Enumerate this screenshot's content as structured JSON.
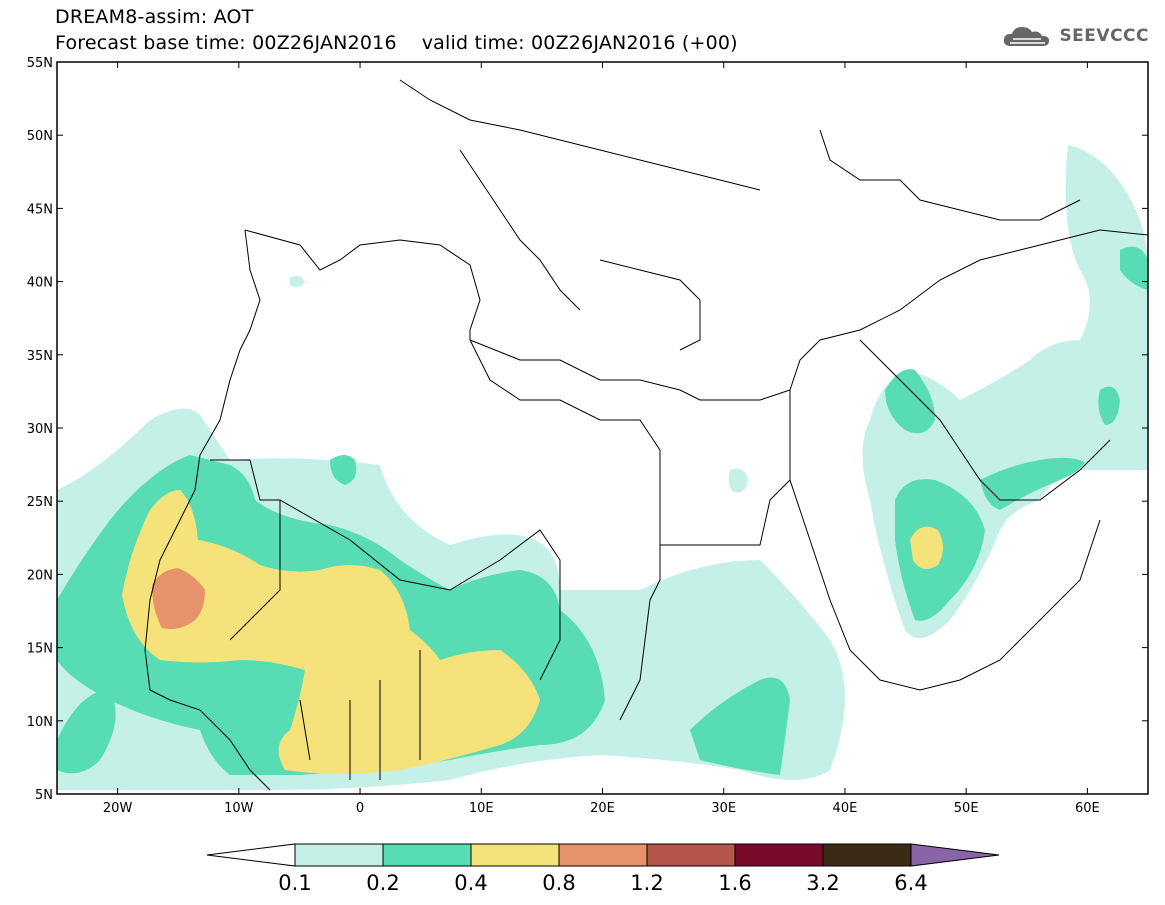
{
  "title": {
    "line1": "DREAM8-assim: AOT",
    "line2": "Forecast base time: 00Z26JAN2016    valid time: 00Z26JAN2016 (+00)"
  },
  "logo": {
    "text": "SEEVCCC",
    "icon": "cloud-icon"
  },
  "map": {
    "lat_ticks": [
      "55N",
      "50N",
      "45N",
      "40N",
      "35N",
      "30N",
      "25N",
      "20N",
      "15N",
      "10N",
      "5N"
    ],
    "lon_ticks": [
      "20W",
      "10W",
      "0",
      "10E",
      "20E",
      "30E",
      "40E",
      "50E",
      "60E"
    ],
    "lat_range": [
      5,
      55
    ],
    "lon_range": [
      -25,
      65
    ]
  },
  "colorbar": {
    "labels": [
      "0.1",
      "0.2",
      "0.4",
      "0.8",
      "1.2",
      "1.6",
      "3.2",
      "6.4"
    ],
    "colors": [
      "#ffffff",
      "#c4f0e8",
      "#58dcb4",
      "#f5e27a",
      "#e6926a",
      "#b4564a",
      "#7a0a2a",
      "#3a2a16",
      "#8a64a8"
    ]
  }
}
